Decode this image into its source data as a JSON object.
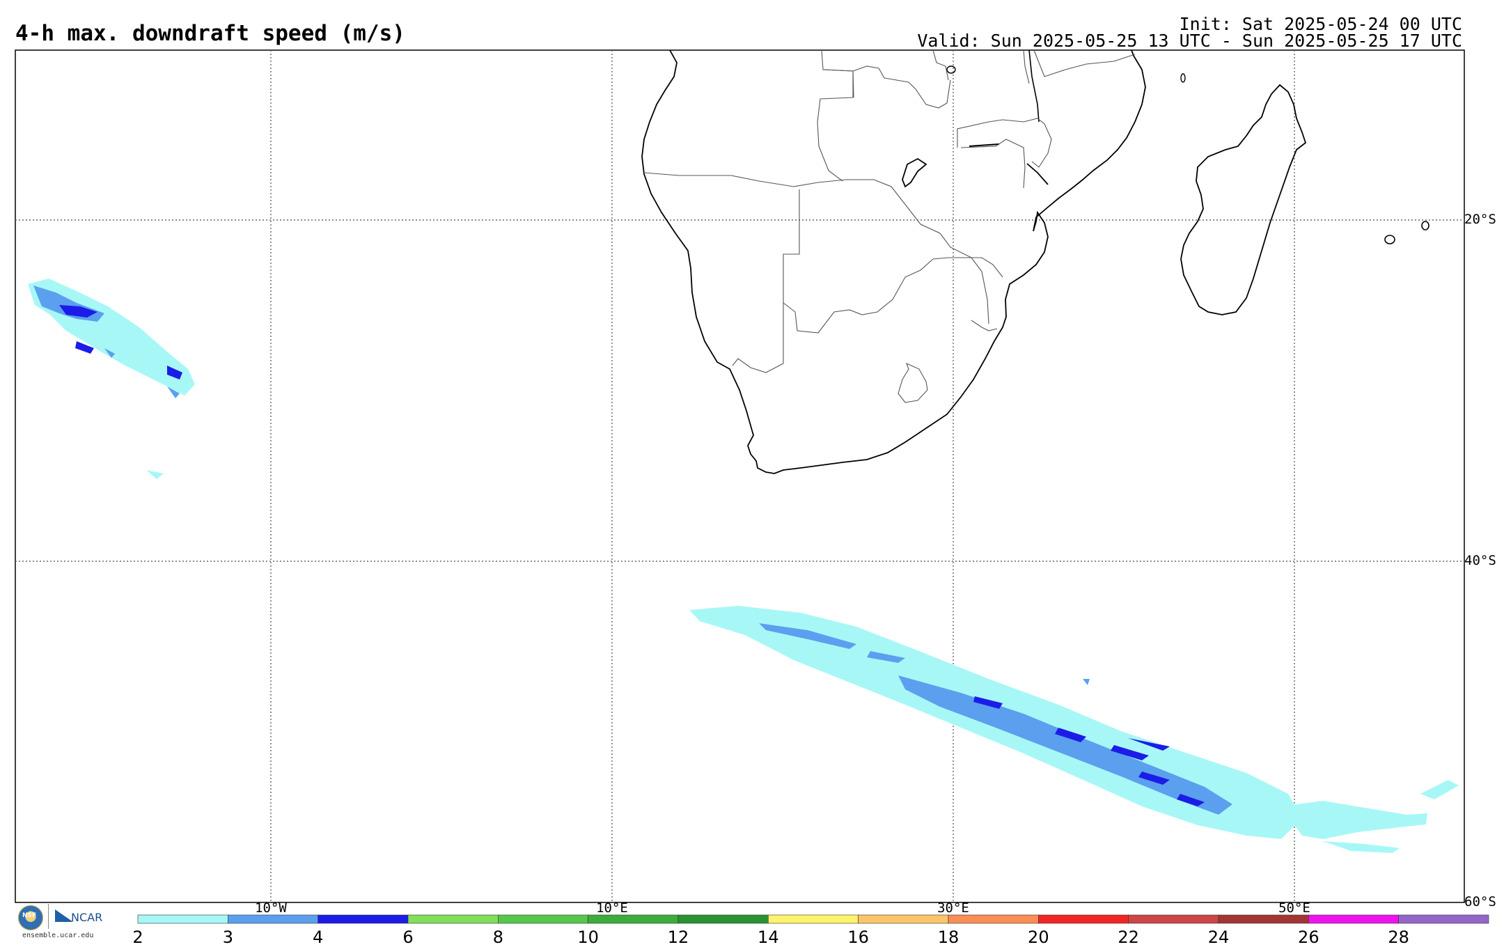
{
  "header": {
    "title": "4-h max. downdraft speed (m/s)",
    "init": "Init: Sat 2025-05-24 00 UTC",
    "valid": "Valid: Sun 2025-05-25 13 UTC - Sun 2025-05-25 17 UTC"
  },
  "map": {
    "lat_labels": [
      "20°S",
      "40°S",
      "60°S"
    ],
    "lon_labels": [
      "10°W",
      "10°E",
      "30°E",
      "50°E"
    ],
    "extent": {
      "lon_min": -25,
      "lon_max": 60,
      "lat_min": -60,
      "lat_max": -10
    },
    "gridlines": true
  },
  "colorbar": {
    "labels": [
      "2",
      "3",
      "4",
      "6",
      "8",
      "10",
      "12",
      "14",
      "16",
      "18",
      "20",
      "22",
      "24",
      "26",
      "28"
    ],
    "colors": [
      "#a8f7f7",
      "#5aa0ee",
      "#1c1ce8",
      "#82de5a",
      "#55c84a",
      "#3aad3a",
      "#2a932f",
      "#fff36b",
      "#fcc566",
      "#fa8e55",
      "#f22525",
      "#cd4545",
      "#a33535",
      "#ef12ef",
      "#9466c9"
    ]
  },
  "footer": {
    "nsf_logo": "NSF",
    "ncar_logo": "NCAR",
    "url": "ensemble.ucar.edu"
  }
}
